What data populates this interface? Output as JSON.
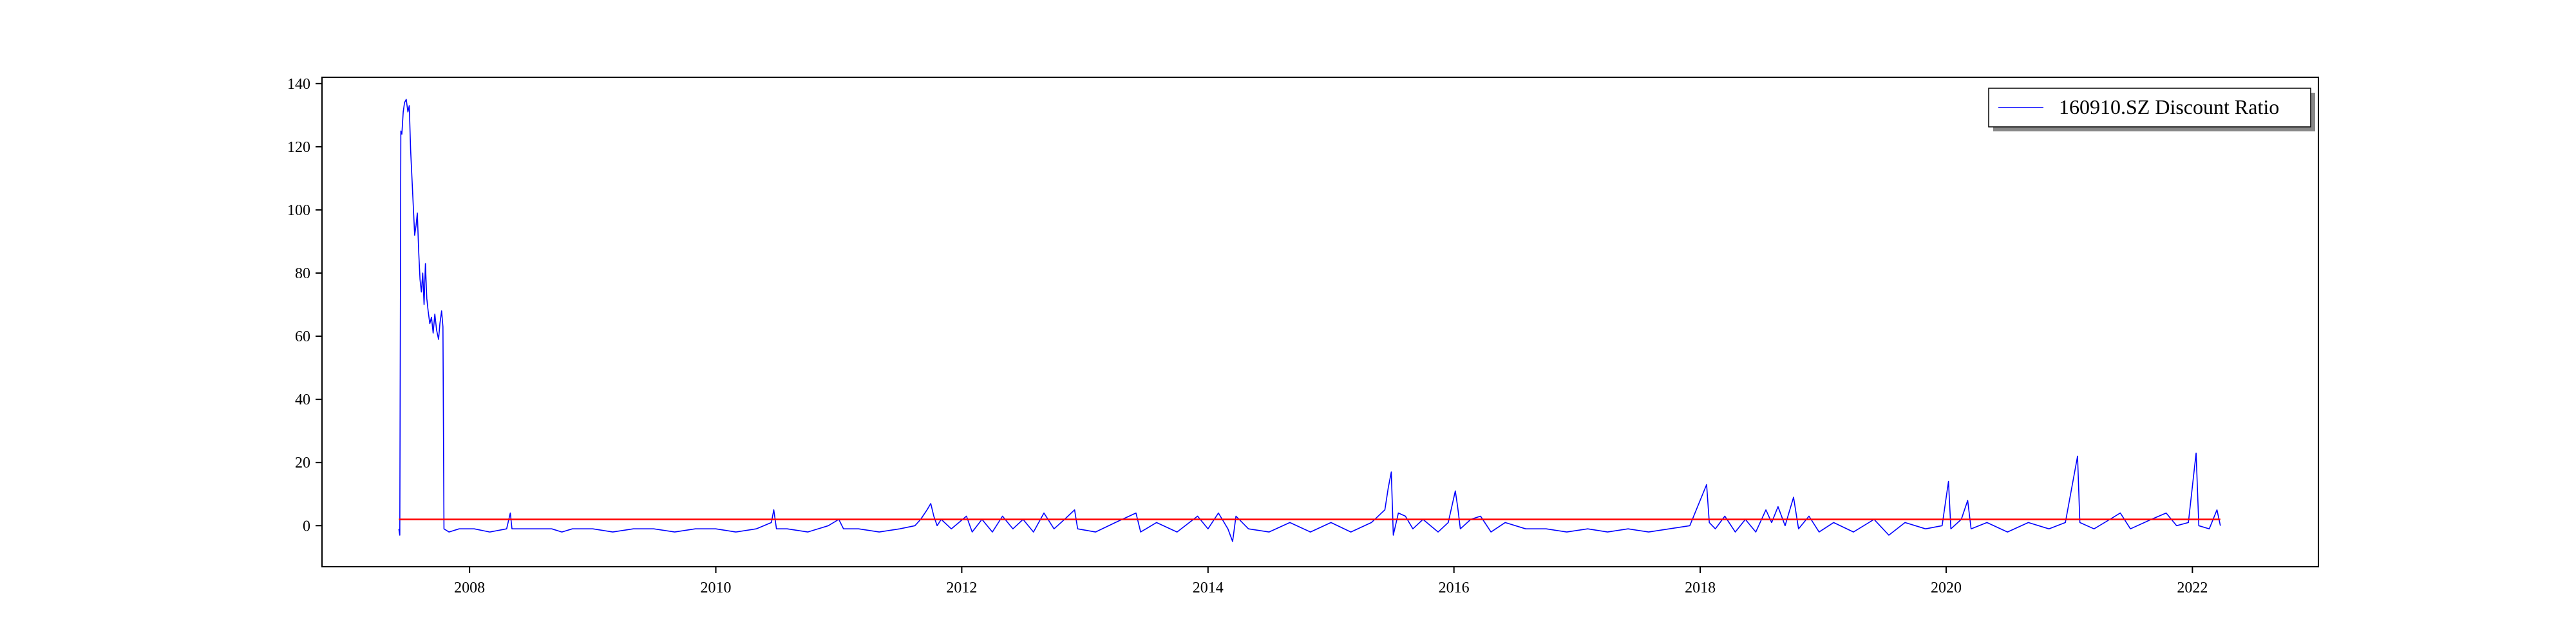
{
  "chart_data": {
    "type": "line",
    "title": "",
    "xlabel": "",
    "ylabel": "",
    "xlim": [
      "2006-10-20",
      "2023-01-10"
    ],
    "ylim": [
      -13,
      142
    ],
    "x_ticks": [
      {
        "date": "2008-01-01",
        "label": "2008"
      },
      {
        "date": "2010-01-01",
        "label": "2010"
      },
      {
        "date": "2012-01-01",
        "label": "2012"
      },
      {
        "date": "2014-01-01",
        "label": "2014"
      },
      {
        "date": "2016-01-01",
        "label": "2016"
      },
      {
        "date": "2018-01-01",
        "label": "2018"
      },
      {
        "date": "2020-01-01",
        "label": "2020"
      },
      {
        "date": "2022-01-01",
        "label": "2022"
      }
    ],
    "y_ticks": [
      0,
      20,
      40,
      60,
      80,
      100,
      120,
      140
    ],
    "grid": false,
    "legend": {
      "placement": "top-right",
      "entries": [
        "160910.SZ Discount Ratio"
      ]
    },
    "series": [
      {
        "name": "160910.SZ Discount Ratio",
        "color": "#0000ff",
        "points": [
          [
            "2007-06-05",
            -1
          ],
          [
            "2007-06-08",
            -3
          ],
          [
            "2007-06-11",
            125
          ],
          [
            "2007-06-14",
            124
          ],
          [
            "2007-06-18",
            131
          ],
          [
            "2007-06-22",
            134
          ],
          [
            "2007-06-27",
            135
          ],
          [
            "2007-07-02",
            131
          ],
          [
            "2007-07-06",
            133
          ],
          [
            "2007-07-10",
            119
          ],
          [
            "2007-07-14",
            110
          ],
          [
            "2007-07-18",
            101
          ],
          [
            "2007-07-22",
            92
          ],
          [
            "2007-07-26",
            95
          ],
          [
            "2007-07-30",
            99
          ],
          [
            "2007-08-03",
            87
          ],
          [
            "2007-08-07",
            78
          ],
          [
            "2007-08-11",
            74
          ],
          [
            "2007-08-15",
            80
          ],
          [
            "2007-08-19",
            70
          ],
          [
            "2007-08-23",
            83
          ],
          [
            "2007-08-27",
            72
          ],
          [
            "2007-08-31",
            68
          ],
          [
            "2007-09-05",
            64
          ],
          [
            "2007-09-10",
            66
          ],
          [
            "2007-09-15",
            61
          ],
          [
            "2007-09-20",
            67
          ],
          [
            "2007-09-25",
            62
          ],
          [
            "2007-10-01",
            59
          ],
          [
            "2007-10-05",
            64
          ],
          [
            "2007-10-10",
            68
          ],
          [
            "2007-10-14",
            63
          ],
          [
            "2007-10-17",
            -1
          ],
          [
            "2007-11-01",
            -2
          ],
          [
            "2007-12-01",
            -1
          ],
          [
            "2008-01-15",
            -1
          ],
          [
            "2008-03-01",
            -2
          ],
          [
            "2008-04-20",
            -1
          ],
          [
            "2008-05-01",
            4
          ],
          [
            "2008-05-06",
            -1
          ],
          [
            "2008-07-01",
            -1
          ],
          [
            "2008-09-01",
            -1
          ],
          [
            "2008-10-01",
            -2
          ],
          [
            "2008-11-01",
            -1
          ],
          [
            "2009-01-01",
            -1
          ],
          [
            "2009-03-01",
            -2
          ],
          [
            "2009-05-01",
            -1
          ],
          [
            "2009-07-01",
            -1
          ],
          [
            "2009-09-01",
            -2
          ],
          [
            "2009-11-01",
            -1
          ],
          [
            "2010-01-01",
            -1
          ],
          [
            "2010-03-01",
            -2
          ],
          [
            "2010-05-01",
            -1
          ],
          [
            "2010-06-15",
            1
          ],
          [
            "2010-06-22",
            5
          ],
          [
            "2010-06-30",
            -1
          ],
          [
            "2010-08-01",
            -1
          ],
          [
            "2010-10-01",
            -2
          ],
          [
            "2010-12-01",
            0
          ],
          [
            "2011-01-01",
            2
          ],
          [
            "2011-01-15",
            -1
          ],
          [
            "2011-03-01",
            -1
          ],
          [
            "2011-05-01",
            -2
          ],
          [
            "2011-07-01",
            -1
          ],
          [
            "2011-08-15",
            0
          ],
          [
            "2011-09-01",
            2
          ],
          [
            "2011-09-20",
            5
          ],
          [
            "2011-10-01",
            7
          ],
          [
            "2011-10-10",
            3
          ],
          [
            "2011-10-20",
            0
          ],
          [
            "2011-11-01",
            2
          ],
          [
            "2011-12-01",
            -1
          ],
          [
            "2012-01-15",
            3
          ],
          [
            "2012-02-01",
            -2
          ],
          [
            "2012-03-01",
            2
          ],
          [
            "2012-04-01",
            -2
          ],
          [
            "2012-05-01",
            3
          ],
          [
            "2012-06-01",
            -1
          ],
          [
            "2012-07-01",
            2
          ],
          [
            "2012-08-01",
            -2
          ],
          [
            "2012-09-01",
            4
          ],
          [
            "2012-10-01",
            -1
          ],
          [
            "2012-11-01",
            2
          ],
          [
            "2012-12-01",
            5
          ],
          [
            "2012-12-10",
            -1
          ],
          [
            "2013-02-01",
            -2
          ],
          [
            "2013-04-01",
            1
          ],
          [
            "2013-06-01",
            4
          ],
          [
            "2013-06-15",
            -2
          ],
          [
            "2013-08-01",
            1
          ],
          [
            "2013-10-01",
            -2
          ],
          [
            "2013-12-01",
            3
          ],
          [
            "2014-01-01",
            -1
          ],
          [
            "2014-02-01",
            4
          ],
          [
            "2014-03-01",
            -1
          ],
          [
            "2014-03-15",
            -5
          ],
          [
            "2014-03-25",
            3
          ],
          [
            "2014-05-01",
            -1
          ],
          [
            "2014-07-01",
            -2
          ],
          [
            "2014-09-01",
            1
          ],
          [
            "2014-11-01",
            -2
          ],
          [
            "2015-01-01",
            1
          ],
          [
            "2015-03-01",
            -2
          ],
          [
            "2015-05-01",
            1
          ],
          [
            "2015-06-10",
            5
          ],
          [
            "2015-06-20",
            12
          ],
          [
            "2015-06-29",
            17
          ],
          [
            "2015-07-05",
            -3
          ],
          [
            "2015-07-20",
            4
          ],
          [
            "2015-08-10",
            3
          ],
          [
            "2015-09-01",
            -1
          ],
          [
            "2015-10-01",
            2
          ],
          [
            "2015-11-15",
            -2
          ],
          [
            "2015-12-15",
            1
          ],
          [
            "2016-01-05",
            11
          ],
          [
            "2016-01-12",
            6
          ],
          [
            "2016-01-20",
            -1
          ],
          [
            "2016-02-20",
            2
          ],
          [
            "2016-03-20",
            3
          ],
          [
            "2016-04-20",
            -2
          ],
          [
            "2016-06-01",
            1
          ],
          [
            "2016-08-01",
            -1
          ],
          [
            "2016-10-01",
            -1
          ],
          [
            "2016-12-01",
            -2
          ],
          [
            "2017-02-01",
            -1
          ],
          [
            "2017-04-01",
            -2
          ],
          [
            "2017-06-01",
            -1
          ],
          [
            "2017-08-01",
            -2
          ],
          [
            "2017-10-01",
            -1
          ],
          [
            "2017-12-01",
            0
          ],
          [
            "2018-01-20",
            13
          ],
          [
            "2018-01-28",
            1
          ],
          [
            "2018-02-15",
            -1
          ],
          [
            "2018-03-15",
            3
          ],
          [
            "2018-04-15",
            -2
          ],
          [
            "2018-05-15",
            2
          ],
          [
            "2018-06-15",
            -2
          ],
          [
            "2018-07-15",
            5
          ],
          [
            "2018-08-01",
            1
          ],
          [
            "2018-08-20",
            6
          ],
          [
            "2018-09-10",
            0
          ],
          [
            "2018-10-05",
            9
          ],
          [
            "2018-10-20",
            -1
          ],
          [
            "2018-11-20",
            3
          ],
          [
            "2018-12-20",
            -2
          ],
          [
            "2019-02-01",
            1
          ],
          [
            "2019-04-01",
            -2
          ],
          [
            "2019-06-01",
            2
          ],
          [
            "2019-07-15",
            -3
          ],
          [
            "2019-09-01",
            1
          ],
          [
            "2019-11-01",
            -1
          ],
          [
            "2019-12-20",
            0
          ],
          [
            "2020-01-08",
            14
          ],
          [
            "2020-01-15",
            -1
          ],
          [
            "2020-02-15",
            2
          ],
          [
            "2020-03-05",
            8
          ],
          [
            "2020-03-15",
            -1
          ],
          [
            "2020-05-01",
            1
          ],
          [
            "2020-07-01",
            -2
          ],
          [
            "2020-09-01",
            1
          ],
          [
            "2020-11-01",
            -1
          ],
          [
            "2020-12-20",
            1
          ],
          [
            "2021-01-25",
            22
          ],
          [
            "2021-02-01",
            1
          ],
          [
            "2021-03-15",
            -1
          ],
          [
            "2021-05-01",
            2
          ],
          [
            "2021-06-01",
            4
          ],
          [
            "2021-07-01",
            -1
          ],
          [
            "2021-09-01",
            2
          ],
          [
            "2021-10-15",
            4
          ],
          [
            "2021-11-15",
            0
          ],
          [
            "2021-12-20",
            1
          ],
          [
            "2022-01-12",
            23
          ],
          [
            "2022-01-20",
            0
          ],
          [
            "2022-02-20",
            -1
          ],
          [
            "2022-03-15",
            5
          ],
          [
            "2022-03-25",
            0
          ]
        ]
      },
      {
        "name": "",
        "color": "#ff0000",
        "points": [
          [
            "2007-06-05",
            2
          ],
          [
            "2022-03-25",
            2
          ]
        ]
      }
    ]
  }
}
